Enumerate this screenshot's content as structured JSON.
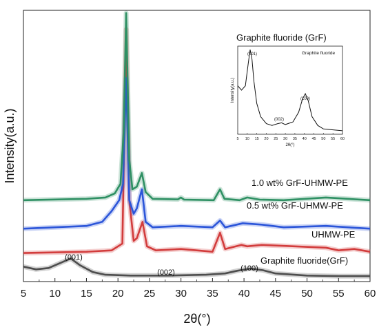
{
  "chart_data": {
    "type": "line",
    "xlabel": "2θ(°)",
    "ylabel": "Intensity(a.u.)",
    "xlim": [
      5,
      60
    ],
    "x_ticks": [
      "5",
      "10",
      "15",
      "20",
      "25",
      "30",
      "35",
      "40",
      "45",
      "50",
      "55",
      "60"
    ],
    "y_ticks_shown": false,
    "grid": false,
    "series": [
      {
        "name": "1.0 wt% GrF-UHMW-PE",
        "color": "#2e9063",
        "x": [
          5,
          15,
          18,
          19.5,
          20.4,
          20.9,
          21.3,
          21.8,
          22.3,
          23.0,
          23.8,
          24.4,
          25.5,
          29.5,
          30.0,
          30.5,
          35.2,
          36.2,
          36.9,
          39.3,
          40.5,
          42.5,
          46.3,
          53.0,
          60
        ],
        "y": [
          0.3,
          0.305,
          0.31,
          0.325,
          0.36,
          0.55,
          0.99,
          0.45,
          0.34,
          0.35,
          0.4,
          0.33,
          0.305,
          0.303,
          0.31,
          0.302,
          0.3,
          0.34,
          0.305,
          0.3,
          0.31,
          0.302,
          0.3,
          0.31,
          0.3
        ]
      },
      {
        "name": "0.5 wt% GrF-UHMW-PE",
        "color": "#2b55d9",
        "x": [
          5,
          15,
          17.5,
          19.0,
          20.2,
          20.8,
          21.3,
          21.8,
          22.5,
          23.0,
          23.8,
          24.4,
          25.5,
          30.0,
          35.0,
          36.2,
          37.0,
          39.8,
          42.8,
          46.3,
          53.0,
          60
        ],
        "y": [
          0.195,
          0.205,
          0.22,
          0.26,
          0.3,
          0.36,
          0.75,
          0.3,
          0.25,
          0.27,
          0.34,
          0.22,
          0.2,
          0.205,
          0.2,
          0.225,
          0.2,
          0.215,
          0.21,
          0.2,
          0.205,
          0.195
        ]
      },
      {
        "name": "UHMW-PE",
        "color": "#d23c3c",
        "x": [
          5,
          15,
          19.0,
          20.7,
          21.3,
          21.8,
          22.5,
          23.0,
          23.9,
          24.6,
          26.0,
          30.0,
          35.0,
          36.2,
          37.0,
          39.6,
          40.5,
          42.8,
          53.0,
          55.0,
          57.5,
          60
        ],
        "y": [
          0.105,
          0.11,
          0.115,
          0.14,
          0.93,
          0.3,
          0.15,
          0.16,
          0.22,
          0.13,
          0.115,
          0.12,
          0.11,
          0.18,
          0.12,
          0.135,
          0.13,
          0.135,
          0.125,
          0.115,
          0.12,
          0.11
        ]
      },
      {
        "name": "Graphite fluoride(GrF)",
        "color": "#4d4d4d",
        "x": [
          5,
          7,
          9,
          11,
          12.5,
          14,
          16,
          18,
          22,
          28,
          34,
          37,
          39,
          41,
          43,
          45,
          50,
          55,
          60
        ],
        "y": [
          0.055,
          0.045,
          0.05,
          0.07,
          0.085,
          0.06,
          0.035,
          0.025,
          0.022,
          0.022,
          0.025,
          0.03,
          0.04,
          0.048,
          0.042,
          0.03,
          0.022,
          0.02,
          0.02
        ]
      }
    ],
    "series_labels": [
      "1.0 wt% GrF-UHMW-PE",
      "0.5 wt% GrF-UHMW-PE",
      "UHMW-PE",
      "Graphite fluoride(GrF)"
    ],
    "annotations": [
      "(001)",
      "(002)",
      "(100)"
    ],
    "inset": {
      "title": "Graphite fluoride (GrF)",
      "legend": "Graphite fluoride",
      "xlabel": "2θ(°)",
      "ylabel": "Intensity(a.u.)",
      "xlim": [
        5,
        60
      ],
      "x_ticks": [
        "5",
        "10",
        "15",
        "20",
        "25",
        "30",
        "35",
        "40",
        "45",
        "50",
        "55",
        "60"
      ],
      "annotations": [
        "(001)",
        "(002)",
        "(100)"
      ],
      "x": [
        5,
        7,
        9,
        10.5,
        11.5,
        12.5,
        13.5,
        15,
        17,
        20,
        23,
        26,
        28,
        30,
        34,
        37,
        39,
        40.5,
        42,
        44,
        47,
        50,
        55,
        60
      ],
      "y": [
        0.55,
        0.5,
        0.55,
        0.8,
        0.96,
        0.85,
        0.6,
        0.35,
        0.2,
        0.12,
        0.1,
        0.12,
        0.13,
        0.11,
        0.14,
        0.25,
        0.4,
        0.46,
        0.38,
        0.2,
        0.1,
        0.06,
        0.05,
        0.04
      ]
    }
  }
}
